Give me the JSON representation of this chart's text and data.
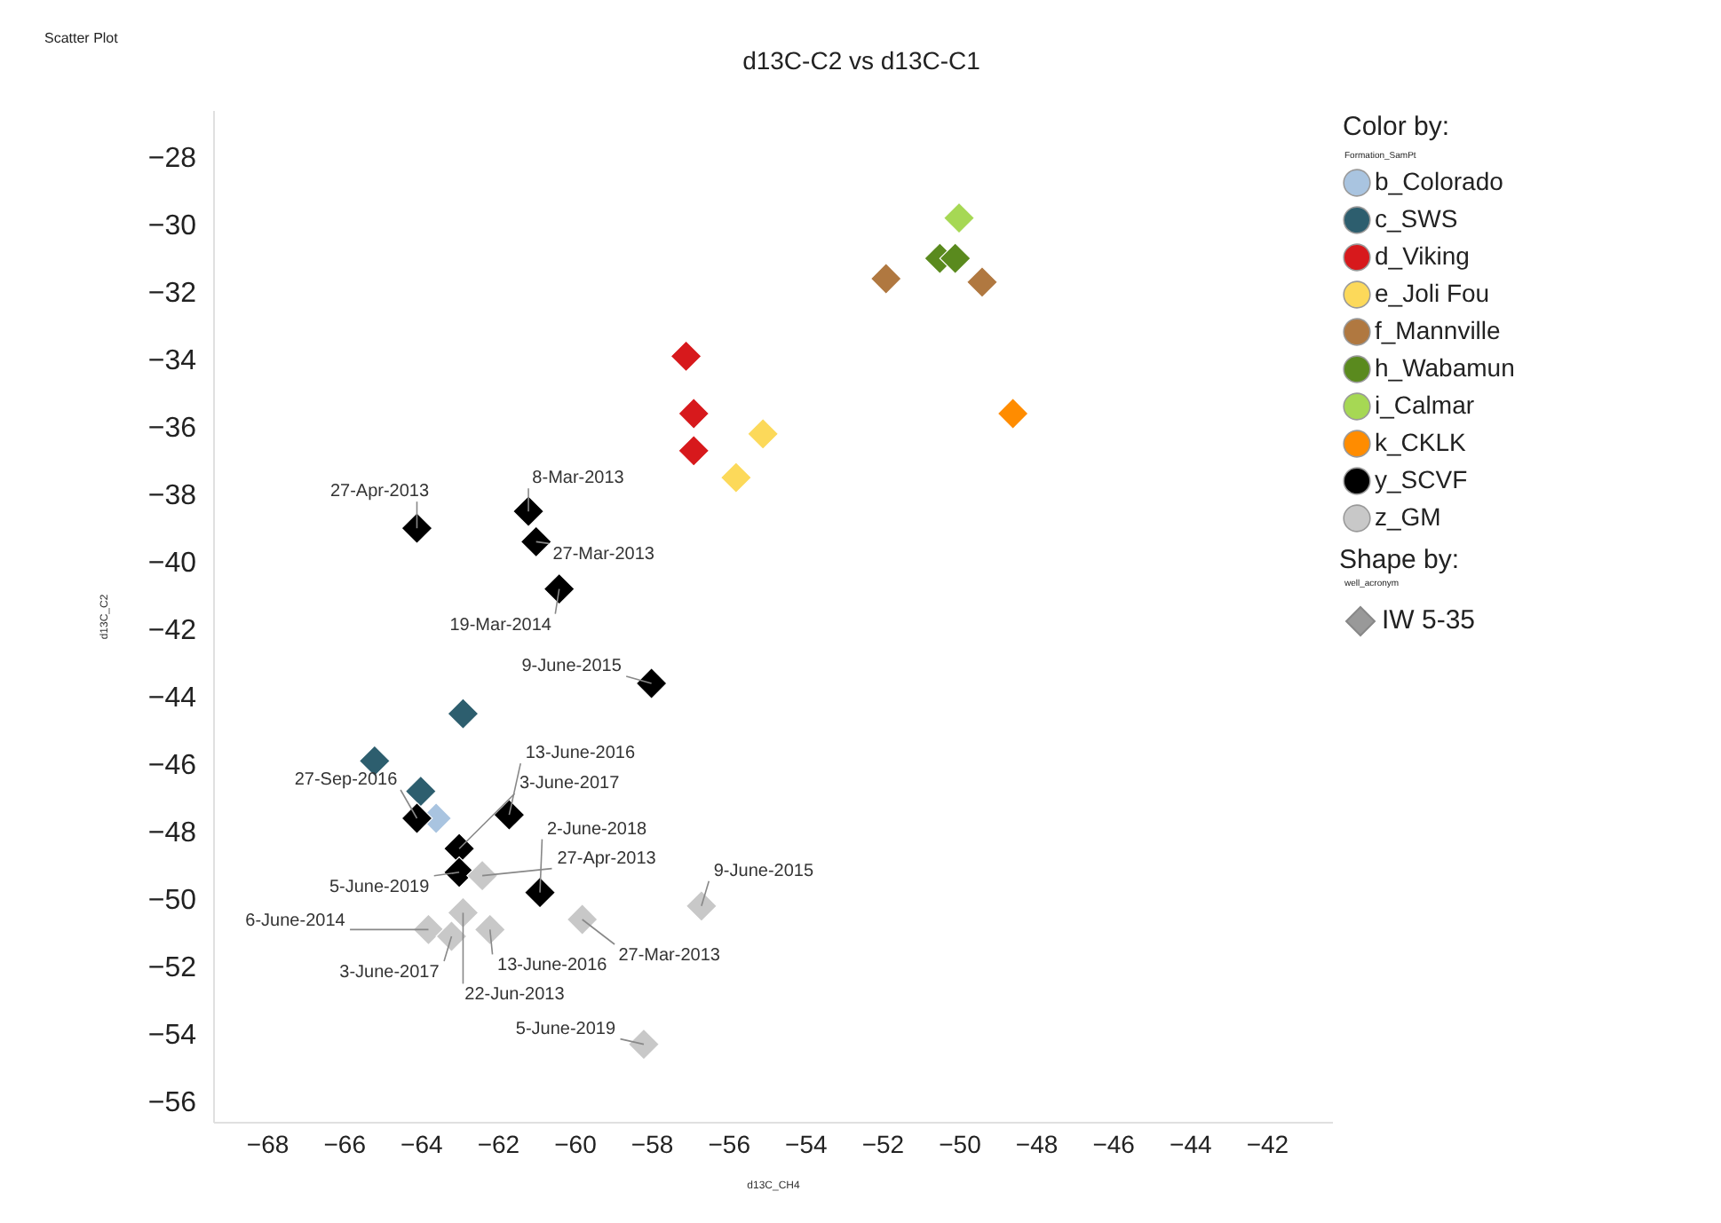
{
  "chart_data": {
    "type": "scatter",
    "title": "d13C-C2 vs d13C-C1",
    "xlabel": "d13C_CH4",
    "ylabel": "d13C_C2",
    "legend_title": "Color by:",
    "legend": "top right",
    "marker": "diamond",
    "xlim": [
      -69.4,
      -40.3
    ],
    "ylim": [
      -56.6,
      -26.6
    ],
    "xticks": [
      -68,
      -66,
      -64,
      -62,
      -60,
      -58,
      -56,
      -54,
      -52,
      -50,
      -48,
      -46,
      -44,
      -42
    ],
    "yticks": [
      -56,
      -54,
      -52,
      -50,
      -48,
      -46,
      -44,
      -42,
      -40,
      -38,
      -36,
      -34,
      -32,
      -30,
      -28
    ],
    "series": [
      {
        "name": "b_Colorado",
        "color": "#a9c4e0",
        "x": [
          -63.6
        ],
        "values": [
          -47.6
        ]
      },
      {
        "name": "c_SWS",
        "color": "#2d5e6e",
        "x": [
          -62.9,
          -65.2,
          -64.0
        ],
        "values": [
          -44.5,
          -45.9,
          -46.8
        ]
      },
      {
        "name": "d_Viking",
        "color": "#d7191c",
        "x": [
          -57.1,
          -56.9,
          -56.9
        ],
        "values": [
          -33.9,
          -35.6,
          -36.7
        ]
      },
      {
        "name": "e_Joli Fou",
        "color": "#fcd95a",
        "x": [
          -55.1,
          -55.8
        ],
        "values": [
          -36.2,
          -37.5
        ]
      },
      {
        "name": "f_Mannville",
        "color": "#b07840",
        "x": [
          -51.9,
          -49.4
        ],
        "values": [
          -31.6,
          -31.7
        ]
      },
      {
        "name": "h_Wabamun",
        "color": "#5a8a1e",
        "x": [
          -50.5,
          -50.1
        ],
        "values": [
          -31.0,
          -31.0
        ]
      },
      {
        "name": "i_Calmar",
        "color": "#a6d854",
        "x": [
          -50.0
        ],
        "values": [
          -29.8
        ]
      },
      {
        "name": "k_CKLK",
        "color": "#ff8c00",
        "x": [
          -48.6
        ],
        "values": [
          -35.6
        ]
      },
      {
        "name": "y_SCVF",
        "color": "#000000",
        "x": [
          -64.1,
          -61.2,
          -61.0,
          -60.4,
          -58.0,
          -64.1,
          -63.0,
          -63.0,
          -61.7,
          -60.9
        ],
        "values": [
          -39.0,
          -38.5,
          -39.4,
          -40.8,
          -43.6,
          -47.6,
          -48.5,
          -49.2,
          -47.5,
          -49.8
        ]
      },
      {
        "name": "z_GM",
        "color": "#c8c8c8",
        "x": [
          -62.4,
          -62.9,
          -63.8,
          -63.2,
          -62.2,
          -59.8,
          -56.7,
          -58.2
        ],
        "values": [
          -49.3,
          -50.4,
          -50.9,
          -51.1,
          -50.9,
          -50.6,
          -50.2,
          -54.3
        ]
      }
    ],
    "annotations": [
      "Scatter Plot",
      {
        "text": "27-Apr-2013",
        "x": -64.1,
        "y": -39.0
      },
      {
        "text": "8-Mar-2013",
        "x": -61.2,
        "y": -38.5
      },
      {
        "text": "27-Mar-2013",
        "x": -61.0,
        "y": -39.4
      },
      {
        "text": "19-Mar-2014",
        "x": -60.4,
        "y": -40.8
      },
      {
        "text": "9-June-2015",
        "x": -58.0,
        "y": -43.6
      },
      {
        "text": "13-June-2016",
        "x": -61.7,
        "y": -47.5
      },
      {
        "text": "27-Sep-2016",
        "x": -64.1,
        "y": -47.6
      },
      {
        "text": "3-June-2017",
        "x": -63.0,
        "y": -48.5
      },
      {
        "text": "2-June-2018",
        "x": -60.9,
        "y": -49.8
      },
      {
        "text": "5-June-2019",
        "x": -63.0,
        "y": -49.2
      },
      {
        "text": "27-Apr-2013",
        "x": -62.4,
        "y": -49.3
      },
      {
        "text": "9-June-2015",
        "x": -56.7,
        "y": -50.2
      },
      {
        "text": "27-Mar-2013",
        "x": -59.8,
        "y": -50.6
      },
      {
        "text": "6-June-2014",
        "x": -63.8,
        "y": -50.9
      },
      {
        "text": "13-June-2016",
        "x": -62.2,
        "y": -50.9
      },
      {
        "text": "3-June-2017",
        "x": -63.2,
        "y": -51.1
      },
      {
        "text": "22-Jun-2013",
        "x": -62.9,
        "y": -50.4
      },
      {
        "text": "5-June-2019",
        "x": -58.2,
        "y": -54.3
      },
      "Formation_SamPt",
      "Shape by:",
      "well_acronym",
      "IW 5-35"
    ]
  }
}
